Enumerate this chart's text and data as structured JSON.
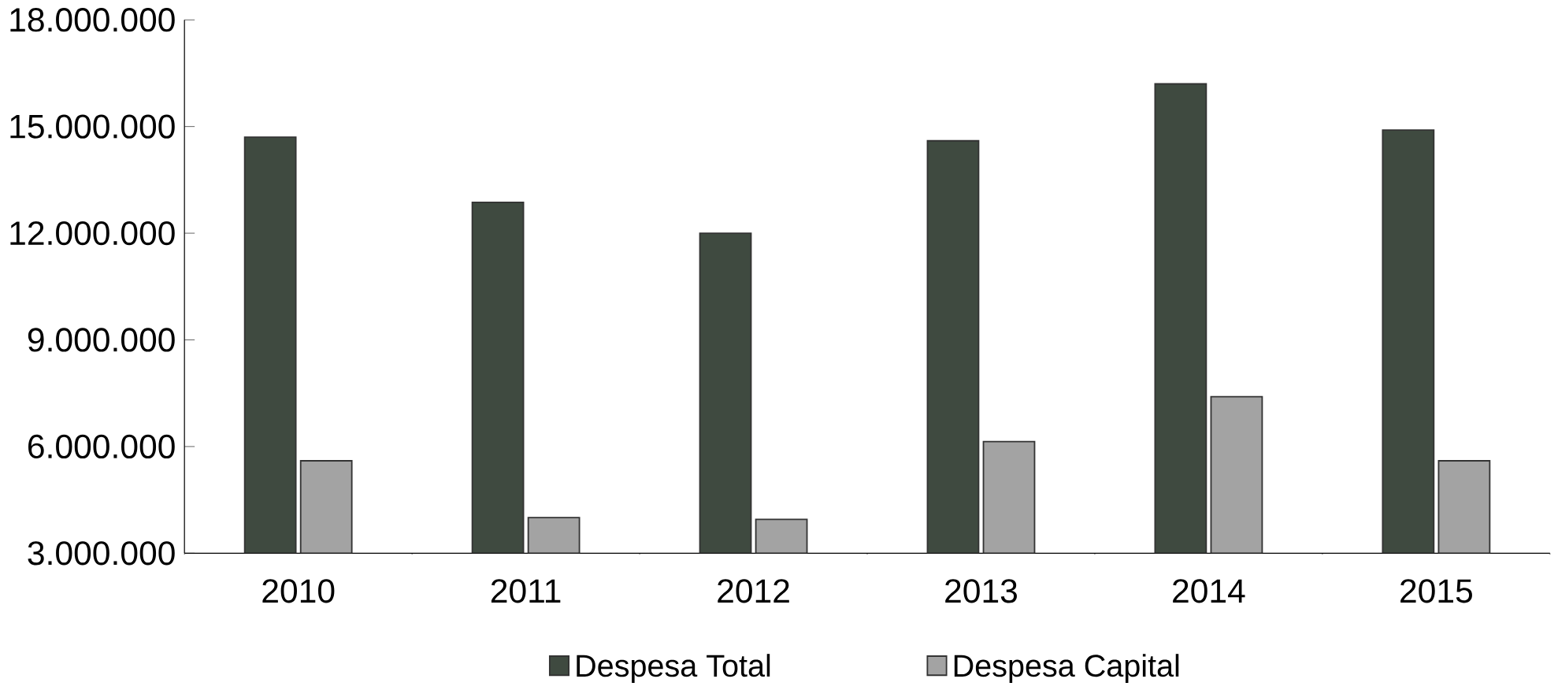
{
  "chart_data": {
    "type": "bar",
    "categories": [
      "2010",
      "2011",
      "2012",
      "2013",
      "2014",
      "2015"
    ],
    "series": [
      {
        "name": "Despesa Total",
        "color": "#3f4a40",
        "values": [
          14700000,
          12870000,
          12000000,
          14600000,
          16200000,
          14900000
        ]
      },
      {
        "name": "Despesa Capital",
        "color": "#a3a3a3",
        "values": [
          5600000,
          4000000,
          3950000,
          6140000,
          7400000,
          5600000
        ]
      }
    ],
    "ylim": [
      3000000,
      18000000
    ],
    "yticks": [
      {
        "value": 3000000,
        "label": "3.000.000"
      },
      {
        "value": 6000000,
        "label": "6.000.000"
      },
      {
        "value": 9000000,
        "label": "9.000.000"
      },
      {
        "value": 12000000,
        "label": "12.000.000"
      },
      {
        "value": 15000000,
        "label": "15.000.000"
      },
      {
        "value": 18000000,
        "label": "18.000.000"
      }
    ],
    "grid": false,
    "legend": "bottom"
  }
}
